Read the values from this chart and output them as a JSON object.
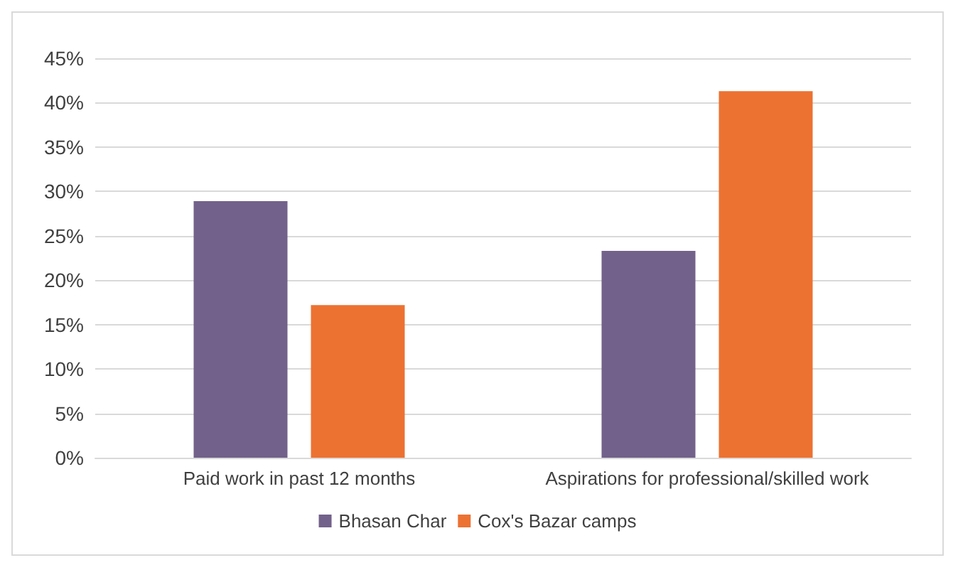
{
  "chart_data": {
    "type": "bar",
    "categories": [
      "Paid work in past 12 months",
      "Aspirations for professional/skilled work"
    ],
    "series": [
      {
        "name": "Bhasan Char",
        "color": "#72618a",
        "values": [
          28.9,
          23.3
        ]
      },
      {
        "name": "Cox's Bazar camps",
        "color": "#ec7232",
        "values": [
          17.2,
          41.3
        ]
      }
    ],
    "ylim": [
      0,
      45
    ],
    "yticks": [
      {
        "value": 0,
        "label": "0%"
      },
      {
        "value": 5,
        "label": "5%"
      },
      {
        "value": 10,
        "label": "10%"
      },
      {
        "value": 15,
        "label": "15%"
      },
      {
        "value": 20,
        "label": "20%"
      },
      {
        "value": 25,
        "label": "25%"
      },
      {
        "value": 30,
        "label": "30%"
      },
      {
        "value": 35,
        "label": "35%"
      },
      {
        "value": 40,
        "label": "40%"
      },
      {
        "value": 45,
        "label": "45%"
      }
    ],
    "grid": "y",
    "legend": "bottom"
  }
}
